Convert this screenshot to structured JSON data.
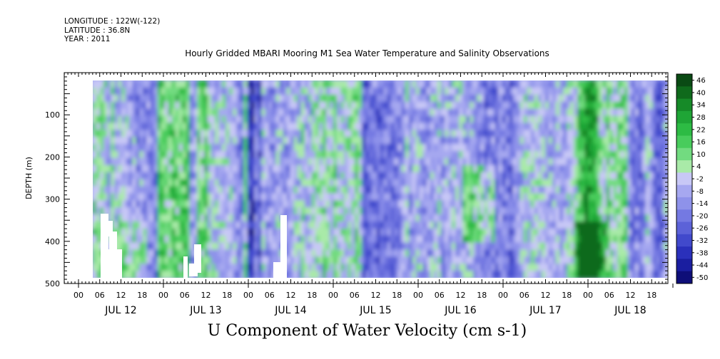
{
  "header": {
    "longitude": "LONGITUDE : 122W(-122)",
    "latitude": "LATITUDE : 36.8N",
    "year": "YEAR : 2011"
  },
  "chart_data": {
    "type": "heatmap",
    "title": "Hourly Gridded MBARI Mooring M1 Sea Water Temperature and Salinity Observations",
    "subtitle": "U Component of Water Velocity (cm s-1)",
    "ylabel": "DEPTH (m)",
    "xlabel": "",
    "ylim": [
      500,
      0
    ],
    "y_ticks": [
      100,
      200,
      300,
      400,
      500
    ],
    "x_hour_ticks": [
      "00",
      "06",
      "12",
      "18",
      "00",
      "06",
      "12",
      "18",
      "00",
      "06",
      "12",
      "18",
      "00",
      "06",
      "12",
      "18",
      "00",
      "06",
      "12",
      "18",
      "00",
      "06",
      "12",
      "18",
      "00",
      "06",
      "12",
      "18"
    ],
    "days": [
      "JUL 12",
      "JUL 13",
      "JUL 14",
      "JUL 15",
      "JUL 16",
      "JUL 17",
      "JUL 18"
    ],
    "colorbar": {
      "levels": [
        "46",
        "40",
        "34",
        "28",
        "22",
        "16",
        "10",
        "4",
        "-2",
        "-8",
        "-14",
        "-20",
        "-26",
        "-32",
        "-38",
        "-44",
        "-50"
      ],
      "colors": [
        "#0a4a14",
        "#0f6a1c",
        "#168a28",
        "#1fa536",
        "#2dbb44",
        "#48cc5c",
        "#72db80",
        "#a9eaa8",
        "#c8c8f6",
        "#a6a8f0",
        "#8e92ea",
        "#7479e2",
        "#5c62d8",
        "#4149cc",
        "#2a30bb",
        "#1a1ea0",
        "#0e0e78"
      ]
    },
    "series_summary": "U velocity mostly between -32 and +34 cm/s over depth ~20-490 m, JUL 11 ~23:00 to JUL 19 ~00:00"
  }
}
